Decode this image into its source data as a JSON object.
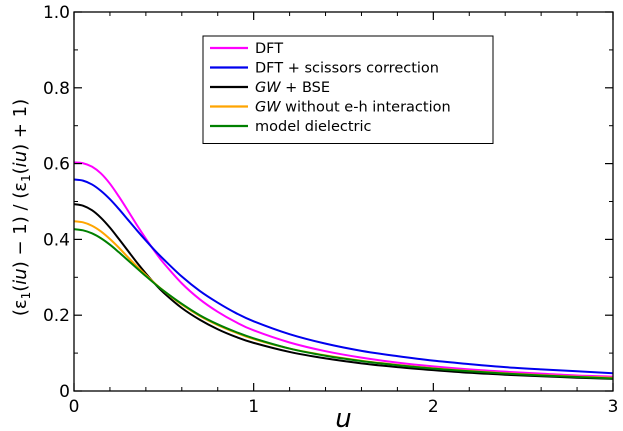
{
  "chart_data": {
    "type": "line",
    "xlabel": "u",
    "ylabel_parts": [
      "(ε",
      "1",
      "(",
      "iu",
      ") − 1) / (ε",
      "1",
      "(",
      "iu",
      ") + 1)"
    ],
    "xlim": [
      0,
      3
    ],
    "ylim": [
      0,
      1.0
    ],
    "x_ticks": [
      0,
      1,
      2,
      3
    ],
    "x_tick_labels": [
      "0",
      "1",
      "2",
      "3"
    ],
    "y_ticks": [
      0,
      0.2,
      0.4,
      0.6,
      0.8,
      1.0
    ],
    "y_tick_labels": [
      "0",
      "0.2",
      "0.4",
      "0.6",
      "0.8",
      "1.0"
    ],
    "grid": false,
    "legend_position": "top-center",
    "x": [
      0,
      0.05,
      0.1,
      0.15,
      0.2,
      0.25,
      0.3,
      0.35,
      0.4,
      0.45,
      0.5,
      0.6,
      0.7,
      0.8,
      0.9,
      1.0,
      1.2,
      1.4,
      1.6,
      1.8,
      2.0,
      2.2,
      2.4,
      2.6,
      2.8,
      3.0
    ],
    "series": [
      {
        "name": "DFT",
        "color": "#ff00ff",
        "values": [
          0.603,
          0.601,
          0.592,
          0.574,
          0.547,
          0.513,
          0.476,
          0.438,
          0.402,
          0.368,
          0.337,
          0.284,
          0.242,
          0.209,
          0.182,
          0.16,
          0.128,
          0.105,
          0.088,
          0.075,
          0.065,
          0.057,
          0.051,
          0.046,
          0.041,
          0.038
        ]
      },
      {
        "name": "DFT + scissors correction",
        "color": "#0000ee",
        "values": [
          0.558,
          0.555,
          0.545,
          0.528,
          0.506,
          0.48,
          0.452,
          0.424,
          0.397,
          0.371,
          0.347,
          0.302,
          0.264,
          0.233,
          0.206,
          0.184,
          0.15,
          0.125,
          0.106,
          0.092,
          0.08,
          0.071,
          0.063,
          0.057,
          0.052,
          0.047
        ]
      },
      {
        "name": "GW + BSE",
        "name_italic": "GW",
        "name_rest": " + BSE",
        "color": "#000000",
        "values": [
          0.493,
          0.489,
          0.477,
          0.457,
          0.431,
          0.401,
          0.37,
          0.339,
          0.31,
          0.283,
          0.259,
          0.219,
          0.188,
          0.163,
          0.143,
          0.127,
          0.103,
          0.086,
          0.073,
          0.063,
          0.055,
          0.048,
          0.043,
          0.039,
          0.035,
          0.032
        ]
      },
      {
        "name": "GW without e-h interaction",
        "name_italic": "GW",
        "name_rest": " without e-h interaction",
        "color": "#ffa500",
        "values": [
          0.448,
          0.445,
          0.436,
          0.421,
          0.401,
          0.378,
          0.353,
          0.329,
          0.306,
          0.284,
          0.264,
          0.228,
          0.198,
          0.174,
          0.154,
          0.137,
          0.112,
          0.094,
          0.08,
          0.069,
          0.06,
          0.053,
          0.047,
          0.042,
          0.038,
          0.035
        ]
      },
      {
        "name": "model dielectric",
        "color": "#008000",
        "values": [
          0.427,
          0.424,
          0.416,
          0.403,
          0.386,
          0.366,
          0.345,
          0.324,
          0.303,
          0.283,
          0.264,
          0.23,
          0.2,
          0.176,
          0.156,
          0.139,
          0.112,
          0.093,
          0.079,
          0.068,
          0.059,
          0.052,
          0.046,
          0.041,
          0.037,
          0.033
        ]
      }
    ]
  }
}
